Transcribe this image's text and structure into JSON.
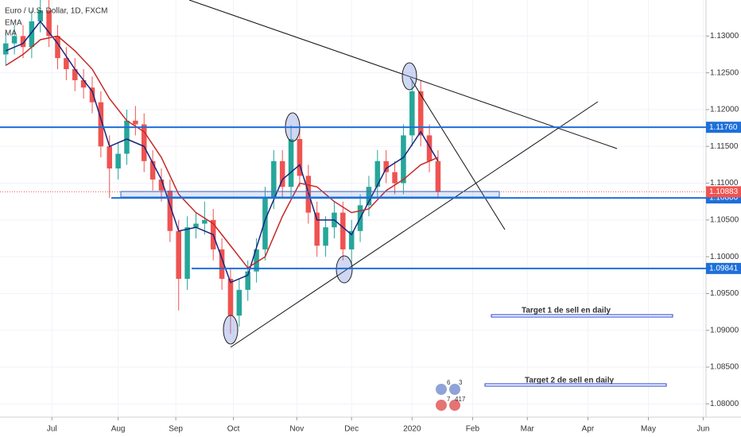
{
  "chart_data": {
    "type": "candlestick",
    "title": "Euro / U.S. Dollar, 1D, FXCM",
    "x": [
      2,
      5,
      8,
      11,
      14,
      17,
      20,
      23,
      26,
      29,
      32,
      35,
      38,
      41,
      44,
      47,
      50,
      53,
      56,
      59,
      62,
      65,
      68,
      71,
      74,
      77,
      80,
      83,
      86,
      89,
      92,
      95,
      98,
      101,
      104,
      107,
      110,
      113,
      116,
      119,
      122,
      125,
      128,
      131,
      134,
      137,
      140,
      143,
      146,
      149,
      152
    ],
    "open": [
      1.1275,
      1.129,
      1.13,
      1.1285,
      1.132,
      1.1335,
      1.13,
      1.127,
      1.1255,
      1.124,
      1.123,
      1.121,
      1.115,
      1.112,
      1.114,
      1.1185,
      1.118,
      1.113,
      1.1105,
      1.109,
      1.1035,
      1.097,
      1.104,
      1.1045,
      1.105,
      1.101,
      1.097,
      1.092,
      1.0955,
      1.098,
      1.101,
      1.108,
      1.113,
      1.1095,
      1.116,
      1.111,
      1.106,
      1.1015,
      1.104,
      1.106,
      1.101,
      1.1035,
      1.107,
      1.1095,
      1.113,
      1.1115,
      1.11,
      1.1165,
      1.1225,
      1.1165,
      1.113
    ],
    "high": [
      1.1305,
      1.1315,
      1.1315,
      1.1335,
      1.1349,
      1.135,
      1.1315,
      1.1285,
      1.127,
      1.1255,
      1.1245,
      1.1225,
      1.1165,
      1.1155,
      1.12,
      1.1205,
      1.1195,
      1.1145,
      1.112,
      1.1105,
      1.105,
      1.1055,
      1.106,
      1.1075,
      1.1065,
      1.1025,
      1.0985,
      1.097,
      1.0995,
      1.1025,
      1.1095,
      1.1145,
      1.1145,
      1.1179,
      1.1175,
      1.1125,
      1.1075,
      1.1055,
      1.1075,
      1.1075,
      1.105,
      1.1085,
      1.111,
      1.1145,
      1.1145,
      1.113,
      1.118,
      1.124,
      1.124,
      1.118,
      1.1145
    ],
    "low": [
      1.126,
      1.1275,
      1.127,
      1.127,
      1.1305,
      1.1285,
      1.1255,
      1.124,
      1.1225,
      1.1215,
      1.1195,
      1.1135,
      1.108,
      1.1105,
      1.1125,
      1.1165,
      1.1115,
      1.109,
      1.1075,
      1.102,
      1.0927,
      1.0955,
      1.1025,
      1.103,
      1.0995,
      1.0955,
      1.0895,
      1.0905,
      1.094,
      1.0965,
      1.0995,
      1.1065,
      1.108,
      1.108,
      1.1095,
      1.1045,
      1.1,
      1.1,
      1.1025,
      1.0995,
      1.099,
      1.102,
      1.1055,
      1.108,
      1.11,
      1.1085,
      1.1085,
      1.115,
      1.115,
      1.1115,
      1.108
    ],
    "close": [
      1.129,
      1.13,
      1.1285,
      1.132,
      1.1335,
      1.13,
      1.127,
      1.1255,
      1.124,
      1.123,
      1.121,
      1.115,
      1.112,
      1.114,
      1.1185,
      1.118,
      1.113,
      1.1105,
      1.109,
      1.1035,
      1.097,
      1.104,
      1.1045,
      1.105,
      1.101,
      1.097,
      1.092,
      1.0955,
      1.098,
      1.101,
      1.108,
      1.113,
      1.1095,
      1.116,
      1.111,
      1.106,
      1.1015,
      1.104,
      1.106,
      1.101,
      1.1035,
      1.107,
      1.1095,
      1.113,
      1.1115,
      1.11,
      1.1165,
      1.1225,
      1.1165,
      1.113,
      1.1088
    ],
    "up_color": "#26a69a",
    "down_color": "#ef5350",
    "series": [
      {
        "name": "EMA",
        "color": "#1a237e",
        "x": [
          2,
          8,
          14,
          20,
          26,
          32,
          38,
          44,
          50,
          56,
          62,
          68,
          74,
          80,
          86,
          92,
          98,
          104,
          110,
          116,
          122,
          128,
          134,
          140,
          146,
          152
        ],
        "values": [
          1.128,
          1.129,
          1.132,
          1.129,
          1.1255,
          1.1225,
          1.115,
          1.116,
          1.115,
          1.1105,
          1.1035,
          1.104,
          1.103,
          1.0965,
          1.0975,
          1.105,
          1.1105,
          1.1125,
          1.105,
          1.105,
          1.103,
          1.1075,
          1.112,
          1.1135,
          1.117,
          1.113
        ]
      },
      {
        "name": "MA",
        "color": "#c62828",
        "x": [
          2,
          8,
          14,
          20,
          26,
          32,
          38,
          44,
          50,
          56,
          62,
          68,
          74,
          80,
          86,
          92,
          98,
          104,
          110,
          116,
          122,
          128,
          134,
          140,
          146,
          152
        ],
        "values": [
          1.126,
          1.1275,
          1.1295,
          1.13,
          1.128,
          1.1255,
          1.1215,
          1.1185,
          1.117,
          1.1135,
          1.1085,
          1.106,
          1.1045,
          1.1015,
          1.0985,
          1.1,
          1.1055,
          1.11,
          1.1095,
          1.1075,
          1.106,
          1.1065,
          1.109,
          1.1105,
          1.1125,
          1.1135
        ]
      }
    ],
    "xlim": [
      0,
      245
    ],
    "ylim": [
      1.0782,
      1.1349
    ],
    "xticks": [
      {
        "value": 18,
        "label": "Jul"
      },
      {
        "value": 41,
        "label": "Aug"
      },
      {
        "value": 61,
        "label": "Sep"
      },
      {
        "value": 81,
        "label": "Oct"
      },
      {
        "value": 103,
        "label": "Nov"
      },
      {
        "value": 122,
        "label": "Dec"
      },
      {
        "value": 143,
        "label": "2020"
      },
      {
        "value": 164,
        "label": "Feb"
      },
      {
        "value": 183,
        "label": "Mar"
      },
      {
        "value": 204,
        "label": "Apr"
      },
      {
        "value": 225,
        "label": "May"
      },
      {
        "value": 244,
        "label": "Jun"
      }
    ],
    "yticks": [
      {
        "value": 1.08,
        "label": "1.08000"
      },
      {
        "value": 1.085,
        "label": "1.08500"
      },
      {
        "value": 1.09,
        "label": "1.09000"
      },
      {
        "value": 1.095,
        "label": "1.09500"
      },
      {
        "value": 1.1,
        "label": "1.10000"
      },
      {
        "value": 1.105,
        "label": "1.10500"
      },
      {
        "value": 1.11,
        "label": "1.11000"
      },
      {
        "value": 1.115,
        "label": "1.11500"
      },
      {
        "value": 1.12,
        "label": "1.12000"
      },
      {
        "value": 1.125,
        "label": "1.12500"
      },
      {
        "value": 1.13,
        "label": "1.13000"
      }
    ],
    "levels": [
      {
        "value": 1.1176,
        "label": "1.11760"
      },
      {
        "value": 1.108,
        "label": "1.10800"
      },
      {
        "value": 1.09841,
        "label": "1.09841"
      }
    ],
    "level_color": "#1e6fd9",
    "last_price": {
      "value": 1.10883,
      "label": "1.10883"
    },
    "annotations": [
      "Target 1 de sell en daily",
      "Target 2 de sell en daily"
    ],
    "badges": [
      "6",
      "3",
      "7",
      "417"
    ]
  }
}
